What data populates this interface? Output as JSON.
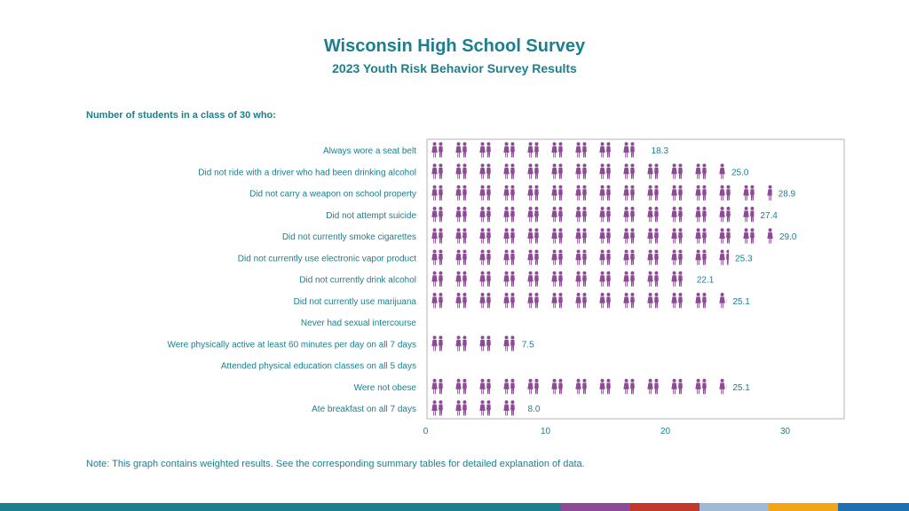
{
  "header": {
    "title": "Wisconsin High School Survey",
    "subtitle": "2023 Youth Risk Behavior Survey Results"
  },
  "section_label": "Number of students in a class of 30 who:",
  "note": "Note: This graph contains weighted results. See the corresponding summary tables for detailed explanation of data.",
  "colors": {
    "accent": "#1b7f8e",
    "icon": "#8e4a97",
    "axis_text": "#1b7f8e",
    "footer": [
      "#1b7f8e",
      "#1b7f8e",
      "#1b7f8e",
      "#1b7f8e",
      "#1b7f8e",
      "#1b7f8e",
      "#1b7f8e",
      "#1b7f8e",
      "#8e4a97",
      "#c0392b",
      "#9fb9d6",
      "#f2a516",
      "#1f6fb5"
    ]
  },
  "chart_data": {
    "type": "bar",
    "icon": "person-icon",
    "orientation": "horizontal",
    "categories": [
      "Always wore a seat belt",
      "Did not ride with a driver who had been drinking alcohol",
      "Did not carry a weapon on school property",
      "Did not attempt suicide",
      "Did not currently smoke cigarettes",
      "Did not currently use electronic vapor product",
      "Did not currently drink alcohol",
      "Did not currently use marijuana",
      "Never had sexual intercourse",
      "Were physically active at least 60 minutes per day on all 7 days",
      "Attended physical education classes on all 5 days",
      "Were not obese",
      "Ate breakfast on all 7 days"
    ],
    "values": [
      18.3,
      25.0,
      28.9,
      27.4,
      29.0,
      25.3,
      22.1,
      25.1,
      null,
      7.5,
      null,
      25.1,
      8.0
    ],
    "value_labels": [
      "18.3",
      "25.0",
      "28.9",
      "27.4",
      "29.0",
      "25.3",
      "22.1",
      "25.1",
      "",
      "7.5",
      "",
      "25.1",
      "8.0"
    ],
    "xlim": [
      0,
      35
    ],
    "xticks": [
      "0",
      "10",
      "20",
      "30"
    ],
    "xtick_values": [
      0,
      10,
      20,
      30
    ]
  }
}
